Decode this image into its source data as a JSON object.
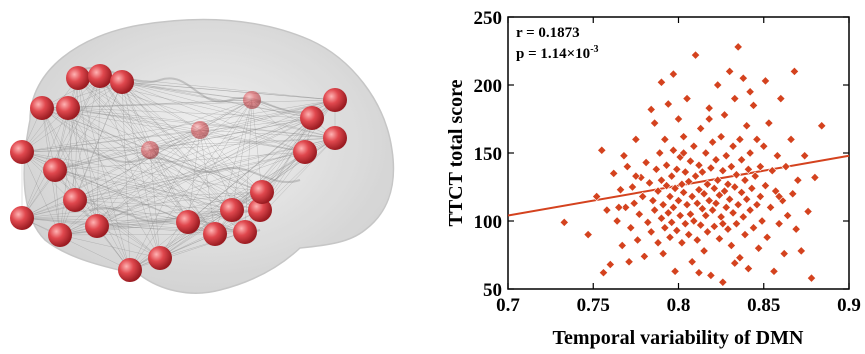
{
  "brain_panel": {
    "node_color": "#e0484e",
    "edge_color": "#8a8a8a",
    "surface_color": "#d9d9d9",
    "node_count": 26
  },
  "chart_data": {
    "type": "scatter",
    "title": "",
    "xlabel": "Temporal variability of DMN",
    "ylabel": "TTCT total score",
    "xlim": [
      0.7,
      0.9
    ],
    "ylim": [
      50,
      250
    ],
    "xticks": [
      "0.7",
      "0.75",
      "0.8",
      "0.85",
      "0.9"
    ],
    "yticks": [
      "50",
      "100",
      "150",
      "200",
      "250"
    ],
    "grid": false,
    "marker": "diamond",
    "marker_color": "#d4421e",
    "line_color": "#d4421e",
    "annotations": {
      "r": "r = 0.1873",
      "p_prefix": "p = 1.14×10",
      "p_exp": "-3"
    },
    "fit_line": {
      "x": [
        0.7,
        0.9
      ],
      "y": [
        104,
        148
      ]
    },
    "points": [
      [
        0.733,
        99
      ],
      [
        0.747,
        90
      ],
      [
        0.752,
        118
      ],
      [
        0.755,
        152
      ],
      [
        0.756,
        62
      ],
      [
        0.758,
        108
      ],
      [
        0.76,
        68
      ],
      [
        0.762,
        135
      ],
      [
        0.764,
        100
      ],
      [
        0.766,
        123
      ],
      [
        0.767,
        82
      ],
      [
        0.768,
        148
      ],
      [
        0.769,
        110
      ],
      [
        0.77,
        140
      ],
      [
        0.771,
        70
      ],
      [
        0.772,
        95
      ],
      [
        0.773,
        125
      ],
      [
        0.774,
        113
      ],
      [
        0.775,
        160
      ],
      [
        0.776,
        86
      ],
      [
        0.777,
        105
      ],
      [
        0.778,
        132
      ],
      [
        0.779,
        118
      ],
      [
        0.78,
        74
      ],
      [
        0.781,
        143
      ],
      [
        0.782,
        99
      ],
      [
        0.783,
        128
      ],
      [
        0.784,
        92
      ],
      [
        0.785,
        115
      ],
      [
        0.786,
        172
      ],
      [
        0.786,
        108
      ],
      [
        0.787,
        138
      ],
      [
        0.788,
        84
      ],
      [
        0.788,
        122
      ],
      [
        0.789,
        150
      ],
      [
        0.79,
        102
      ],
      [
        0.79,
        130
      ],
      [
        0.791,
        76
      ],
      [
        0.791,
        112
      ],
      [
        0.792,
        160
      ],
      [
        0.792,
        95
      ],
      [
        0.793,
        126
      ],
      [
        0.793,
        141
      ],
      [
        0.794,
        106
      ],
      [
        0.794,
        186
      ],
      [
        0.795,
        88
      ],
      [
        0.795,
        118
      ],
      [
        0.796,
        133
      ],
      [
        0.796,
        99
      ],
      [
        0.797,
        152
      ],
      [
        0.797,
        110
      ],
      [
        0.798,
        63
      ],
      [
        0.798,
        124
      ],
      [
        0.799,
        138
      ],
      [
        0.799,
        93
      ],
      [
        0.8,
        115
      ],
      [
        0.8,
        175
      ],
      [
        0.801,
        104
      ],
      [
        0.801,
        147
      ],
      [
        0.802,
        127
      ],
      [
        0.802,
        84
      ],
      [
        0.803,
        121
      ],
      [
        0.803,
        162
      ],
      [
        0.804,
        98
      ],
      [
        0.804,
        136
      ],
      [
        0.805,
        112
      ],
      [
        0.805,
        190
      ],
      [
        0.806,
        90
      ],
      [
        0.806,
        129
      ],
      [
        0.807,
        144
      ],
      [
        0.807,
        105
      ],
      [
        0.808,
        118
      ],
      [
        0.808,
        70
      ],
      [
        0.809,
        155
      ],
      [
        0.809,
        100
      ],
      [
        0.81,
        133
      ],
      [
        0.81,
        222
      ],
      [
        0.811,
        113
      ],
      [
        0.811,
        86
      ],
      [
        0.812,
        141
      ],
      [
        0.812,
        123
      ],
      [
        0.813,
        97
      ],
      [
        0.813,
        168
      ],
      [
        0.814,
        109
      ],
      [
        0.814,
        136
      ],
      [
        0.815,
        78
      ],
      [
        0.815,
        120
      ],
      [
        0.816,
        150
      ],
      [
        0.816,
        104
      ],
      [
        0.817,
        127
      ],
      [
        0.817,
        92
      ],
      [
        0.818,
        183
      ],
      [
        0.818,
        115
      ],
      [
        0.819,
        139
      ],
      [
        0.819,
        60
      ],
      [
        0.82,
        108
      ],
      [
        0.82,
        158
      ],
      [
        0.821,
        124
      ],
      [
        0.821,
        96
      ],
      [
        0.822,
        145
      ],
      [
        0.822,
        113
      ],
      [
        0.823,
        200
      ],
      [
        0.823,
        130
      ],
      [
        0.824,
        87
      ],
      [
        0.824,
        119
      ],
      [
        0.825,
        162
      ],
      [
        0.825,
        103
      ],
      [
        0.826,
        137
      ],
      [
        0.826,
        55
      ],
      [
        0.827,
        122
      ],
      [
        0.827,
        178
      ],
      [
        0.828,
        110
      ],
      [
        0.828,
        148
      ],
      [
        0.829,
        94
      ],
      [
        0.829,
        127
      ],
      [
        0.83,
        210
      ],
      [
        0.83,
        116
      ],
      [
        0.831,
        140
      ],
      [
        0.831,
        82
      ],
      [
        0.832,
        106
      ],
      [
        0.832,
        155
      ],
      [
        0.833,
        125
      ],
      [
        0.833,
        190
      ],
      [
        0.834,
        98
      ],
      [
        0.834,
        134
      ],
      [
        0.835,
        228
      ],
      [
        0.835,
        112
      ],
      [
        0.836,
        160
      ],
      [
        0.836,
        73
      ],
      [
        0.837,
        121
      ],
      [
        0.837,
        145
      ],
      [
        0.838,
        103
      ],
      [
        0.838,
        205
      ],
      [
        0.839,
        130
      ],
      [
        0.839,
        90
      ],
      [
        0.84,
        116
      ],
      [
        0.84,
        170
      ],
      [
        0.841,
        138
      ],
      [
        0.841,
        65
      ],
      [
        0.842,
        108
      ],
      [
        0.842,
        150
      ],
      [
        0.843,
        124
      ],
      [
        0.844,
        185
      ],
      [
        0.844,
        95
      ],
      [
        0.845,
        133
      ],
      [
        0.846,
        112
      ],
      [
        0.846,
        160
      ],
      [
        0.847,
        80
      ],
      [
        0.848,
        140
      ],
      [
        0.848,
        118
      ],
      [
        0.849,
        100
      ],
      [
        0.85,
        155
      ],
      [
        0.851,
        126
      ],
      [
        0.852,
        88
      ],
      [
        0.853,
        172
      ],
      [
        0.854,
        110
      ],
      [
        0.855,
        137
      ],
      [
        0.856,
        63
      ],
      [
        0.857,
        122
      ],
      [
        0.858,
        148
      ],
      [
        0.859,
        98
      ],
      [
        0.86,
        190
      ],
      [
        0.861,
        115
      ],
      [
        0.862,
        76
      ],
      [
        0.863,
        140
      ],
      [
        0.864,
        104
      ],
      [
        0.866,
        160
      ],
      [
        0.867,
        120
      ],
      [
        0.868,
        210
      ],
      [
        0.869,
        94
      ],
      [
        0.87,
        130
      ],
      [
        0.872,
        78
      ],
      [
        0.874,
        148
      ],
      [
        0.876,
        107
      ],
      [
        0.878,
        58
      ],
      [
        0.88,
        132
      ],
      [
        0.884,
        170
      ],
      [
        0.812,
        62
      ],
      [
        0.797,
        208
      ],
      [
        0.803,
        150
      ],
      [
        0.818,
        175
      ],
      [
        0.826,
        98
      ],
      [
        0.79,
        202
      ],
      [
        0.784,
        182
      ],
      [
        0.775,
        133
      ],
      [
        0.765,
        110
      ],
      [
        0.833,
        69
      ],
      [
        0.842,
        195
      ],
      [
        0.851,
        203
      ],
      [
        0.859,
        118
      ]
    ]
  }
}
